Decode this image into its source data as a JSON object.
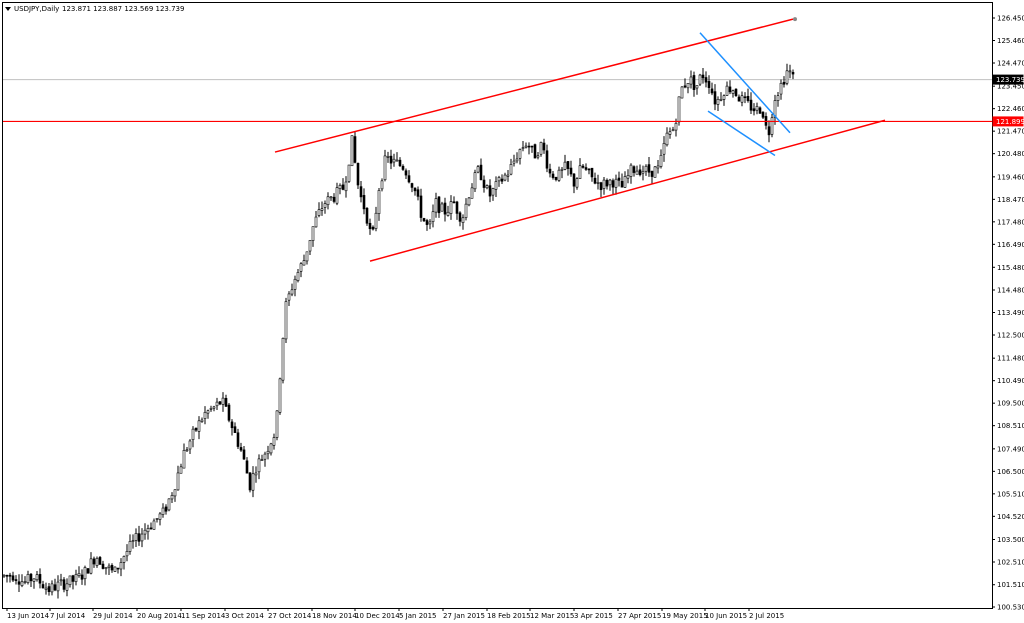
{
  "header": {
    "symbol": "USDJPY,Daily",
    "ohlc": "123.871 123.887 123.569 123.739"
  },
  "chart_data": {
    "type": "candlestick",
    "ylim": [
      100.53,
      126.45
    ],
    "xlim": [
      0,
      800
    ],
    "y_ticks": [
      "126.450",
      "125.460",
      "124.470",
      "123.450",
      "122.460",
      "121.470",
      "120.480",
      "119.460",
      "118.470",
      "117.480",
      "116.490",
      "115.480",
      "114.480",
      "113.490",
      "112.500",
      "111.480",
      "110.490",
      "109.500",
      "108.510",
      "107.490",
      "106.500",
      "105.510",
      "104.520",
      "103.500",
      "102.510",
      "101.510",
      "100.530"
    ],
    "x_ticks": [
      {
        "label": "13 Jun 2014",
        "t": 4
      },
      {
        "label": "7 Jul 2014",
        "t": 47
      },
      {
        "label": "29 Jul 2014",
        "t": 90
      },
      {
        "label": "20 Aug 2014",
        "t": 134
      },
      {
        "label": "11 Sep 2014",
        "t": 178
      },
      {
        "label": "3 Oct 2014",
        "t": 222
      },
      {
        "label": "27 Oct 2014",
        "t": 265
      },
      {
        "label": "18 Nov 2014",
        "t": 309
      },
      {
        "label": "10 Dec 2014",
        "t": 352
      },
      {
        "label": "5 Jan 2015",
        "t": 396
      },
      {
        "label": "27 Jan 2015",
        "t": 440
      },
      {
        "label": "18 Feb 2015",
        "t": 484
      },
      {
        "label": "12 Mar 2015",
        "t": 527
      },
      {
        "label": "3 Apr 2015",
        "t": 571
      },
      {
        "label": "27 Apr 2015",
        "t": 615
      },
      {
        "label": "19 May 2015",
        "t": 659
      },
      {
        "label": "10 Jun 2015",
        "t": 702
      },
      {
        "label": "2 Jul 2015",
        "t": 746
      }
    ],
    "current_price": {
      "label": "123.739",
      "value": 123.739
    },
    "hline": {
      "label": "121.899",
      "value": 121.899
    },
    "colors": {
      "up": "#ffffff",
      "down": "#000000",
      "outline": "#000000",
      "channel": "#ff0000",
      "wedge": "#1e90ff",
      "grid": "#c0c0c0",
      "axis": "#000000"
    },
    "trendlines": [
      {
        "name": "channel-upper",
        "color": "#ff0000",
        "x1": 272,
        "y1": 120.55,
        "x2": 790,
        "y2": 126.4
      },
      {
        "name": "channel-lower",
        "color": "#ff0000",
        "x1": 367,
        "y1": 115.75,
        "x2": 882,
        "y2": 121.95
      },
      {
        "name": "wedge-upper",
        "color": "#1e90ff",
        "x1": 697,
        "y1": 125.8,
        "x2": 787,
        "y2": 121.4
      },
      {
        "name": "wedge-lower",
        "color": "#1e90ff",
        "x1": 705,
        "y1": 122.35,
        "x2": 772,
        "y2": 120.4
      }
    ],
    "anchors": [
      [
        0,
        101.9
      ],
      [
        10,
        101.95
      ],
      [
        20,
        101.6
      ],
      [
        30,
        101.85
      ],
      [
        45,
        101.3
      ],
      [
        55,
        101.5
      ],
      [
        70,
        101.7
      ],
      [
        80,
        102.0
      ],
      [
        92,
        102.8
      ],
      [
        100,
        102.4
      ],
      [
        110,
        102.0
      ],
      [
        120,
        102.8
      ],
      [
        130,
        103.4
      ],
      [
        140,
        103.9
      ],
      [
        150,
        104.3
      ],
      [
        160,
        104.7
      ],
      [
        170,
        105.8
      ],
      [
        180,
        107.3
      ],
      [
        190,
        108.2
      ],
      [
        200,
        109.0
      ],
      [
        210,
        109.3
      ],
      [
        218,
        109.6
      ],
      [
        228,
        108.5
      ],
      [
        238,
        107.3
      ],
      [
        246,
        105.9
      ],
      [
        252,
        106.7
      ],
      [
        262,
        107.4
      ],
      [
        272,
        108.3
      ],
      [
        278,
        112.0
      ],
      [
        282,
        113.8
      ],
      [
        290,
        114.9
      ],
      [
        300,
        115.8
      ],
      [
        310,
        117.4
      ],
      [
        320,
        118.3
      ],
      [
        330,
        118.6
      ],
      [
        340,
        119.0
      ],
      [
        348,
        121.0
      ],
      [
        355,
        118.8
      ],
      [
        362,
        117.9
      ],
      [
        368,
        116.6
      ],
      [
        375,
        119.0
      ],
      [
        382,
        120.3
      ],
      [
        390,
        120.1
      ],
      [
        400,
        119.9
      ],
      [
        410,
        119.0
      ],
      [
        418,
        117.7
      ],
      [
        425,
        117.1
      ],
      [
        432,
        118.3
      ],
      [
        440,
        117.9
      ],
      [
        450,
        118.3
      ],
      [
        458,
        117.6
      ],
      [
        466,
        118.9
      ],
      [
        475,
        119.8
      ],
      [
        485,
        118.6
      ],
      [
        495,
        119.2
      ],
      [
        505,
        119.7
      ],
      [
        515,
        120.6
      ],
      [
        523,
        121.0
      ],
      [
        530,
        120.4
      ],
      [
        538,
        120.9
      ],
      [
        546,
        119.6
      ],
      [
        555,
        119.5
      ],
      [
        562,
        119.9
      ],
      [
        570,
        119.2
      ],
      [
        578,
        119.9
      ],
      [
        588,
        119.4
      ],
      [
        598,
        119.1
      ],
      [
        608,
        119.3
      ],
      [
        618,
        119.0
      ],
      [
        628,
        119.8
      ],
      [
        637,
        119.8
      ],
      [
        645,
        119.7
      ],
      [
        655,
        119.8
      ],
      [
        662,
        121.2
      ],
      [
        670,
        121.6
      ],
      [
        677,
        123.3
      ],
      [
        685,
        123.8
      ],
      [
        692,
        123.4
      ],
      [
        698,
        124.0
      ],
      [
        705,
        123.6
      ],
      [
        712,
        122.7
      ],
      [
        720,
        123.3
      ],
      [
        728,
        123.4
      ],
      [
        736,
        122.9
      ],
      [
        745,
        122.6
      ],
      [
        752,
        122.4
      ],
      [
        758,
        122.5
      ],
      [
        764,
        121.2
      ],
      [
        770,
        122.9
      ],
      [
        778,
        123.6
      ],
      [
        784,
        124.2
      ],
      [
        790,
        123.739
      ]
    ]
  }
}
